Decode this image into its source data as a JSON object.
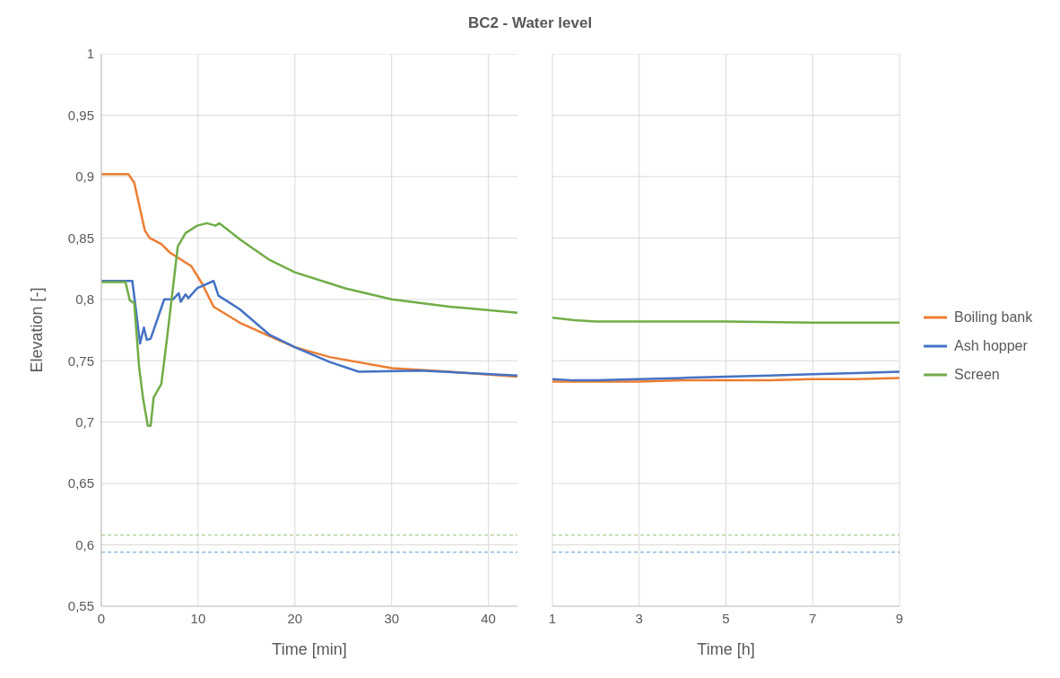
{
  "chart_data": [
    {
      "type": "line",
      "title": "BC2 - Water level",
      "xlabel": "Time [min]",
      "ylabel": "Elevation [-]",
      "xlim": [
        0,
        43
      ],
      "xticks": [
        0,
        10,
        20,
        30,
        40
      ],
      "ylim": [
        0.55,
        1
      ],
      "yticks": [
        {
          "value": 0.55,
          "label": "0,55"
        },
        {
          "value": 0.6,
          "label": "0,6"
        },
        {
          "value": 0.65,
          "label": "0,65"
        },
        {
          "value": 0.7,
          "label": "0,7"
        },
        {
          "value": 0.75,
          "label": "0,75"
        },
        {
          "value": 0.8,
          "label": "0,8"
        },
        {
          "value": 0.85,
          "label": "0,85"
        },
        {
          "value": 0.9,
          "label": "0,9"
        },
        {
          "value": 0.95,
          "label": "0,95"
        },
        {
          "value": 1,
          "label": "1"
        }
      ],
      "grid": true,
      "line_style": "solid",
      "marker": "none",
      "series": [
        {
          "color": "#ed7d31",
          "x": [
            0,
            2.8,
            3.4,
            4.5,
            5,
            6.2,
            7.1,
            9.3,
            10.4,
            11.6,
            14.3,
            17.4,
            20,
            23.6,
            30,
            36,
            43
          ],
          "values": [
            0.902,
            0.902,
            0.895,
            0.856,
            0.85,
            0.845,
            0.838,
            0.827,
            0.813,
            0.794,
            0.781,
            0.77,
            0.761,
            0.753,
            0.744,
            0.741,
            0.737
          ]
        },
        {
          "color": "#4472c4",
          "x": [
            0,
            3.2,
            3.6,
            4,
            4.4,
            4.7,
            5.1,
            6.5,
            7.4,
            8,
            8.2,
            8.7,
            9,
            9.9,
            11.6,
            12.1,
            14.3,
            17.4,
            20,
            23.6,
            26.6,
            33,
            43
          ],
          "values": [
            0.815,
            0.815,
            0.79,
            0.764,
            0.777,
            0.767,
            0.768,
            0.8,
            0.8,
            0.805,
            0.798,
            0.804,
            0.801,
            0.809,
            0.815,
            0.803,
            0.792,
            0.771,
            0.761,
            0.749,
            0.741,
            0.742,
            0.738
          ]
        },
        {
          "color": "#70ad47",
          "x": [
            0,
            2.5,
            2.95,
            3.4,
            3.9,
            4.3,
            4.8,
            5.1,
            5.4,
            6.2,
            6.8,
            7.9,
            8.7,
            9.9,
            10.9,
            11.8,
            12.2,
            14.3,
            17.4,
            20,
            25.2,
            30,
            36,
            43
          ],
          "values": [
            0.814,
            0.814,
            0.799,
            0.797,
            0.745,
            0.72,
            0.697,
            0.697,
            0.72,
            0.731,
            0.769,
            0.843,
            0.854,
            0.86,
            0.862,
            0.86,
            0.862,
            0.849,
            0.832,
            0.822,
            0.809,
            0.8,
            0.794,
            0.789
          ]
        }
      ],
      "ref_lines": [
        {
          "axis": "y",
          "value": 0.608,
          "color": "#a9d18e",
          "line_style": "dashed"
        },
        {
          "axis": "y",
          "value": 0.594,
          "color": "#5b9bd5",
          "line_style": "dashed"
        }
      ]
    },
    {
      "type": "line",
      "xlabel": "Time [h]",
      "xlim": [
        1,
        9
      ],
      "xticks": [
        1,
        3,
        5,
        7,
        9
      ],
      "ylim": [
        0.55,
        1
      ],
      "yticks": [
        0.55,
        0.6,
        0.65,
        0.7,
        0.75,
        0.8,
        0.85,
        0.9,
        0.95,
        1
      ],
      "tick_labels": "x",
      "grid": true,
      "legend": "right",
      "line_style": "solid",
      "marker": "none",
      "series": [
        {
          "name": "Boiling bank",
          "color": "#ed7d31",
          "x": [
            1,
            2,
            3,
            4,
            5,
            6,
            7,
            8,
            9
          ],
          "values": [
            0.733,
            0.733,
            0.733,
            0.734,
            0.734,
            0.734,
            0.735,
            0.735,
            0.736
          ]
        },
        {
          "name": "Ash hopper",
          "color": "#4472c4",
          "x": [
            1,
            1.5,
            2,
            3,
            4,
            5,
            6,
            7,
            8,
            9
          ],
          "values": [
            0.735,
            0.734,
            0.734,
            0.735,
            0.736,
            0.737,
            0.738,
            0.739,
            0.74,
            0.741
          ]
        },
        {
          "name": "Screen",
          "color": "#70ad47",
          "x": [
            1,
            1.5,
            2,
            2.5,
            3,
            5,
            7,
            9
          ],
          "values": [
            0.785,
            0.783,
            0.782,
            0.782,
            0.782,
            0.782,
            0.781,
            0.781
          ]
        }
      ],
      "ref_lines": [
        {
          "axis": "y",
          "value": 0.608,
          "color": "#a9d18e",
          "line_style": "dashed"
        },
        {
          "axis": "y",
          "value": 0.594,
          "color": "#5b9bd5",
          "line_style": "dashed"
        }
      ]
    }
  ]
}
